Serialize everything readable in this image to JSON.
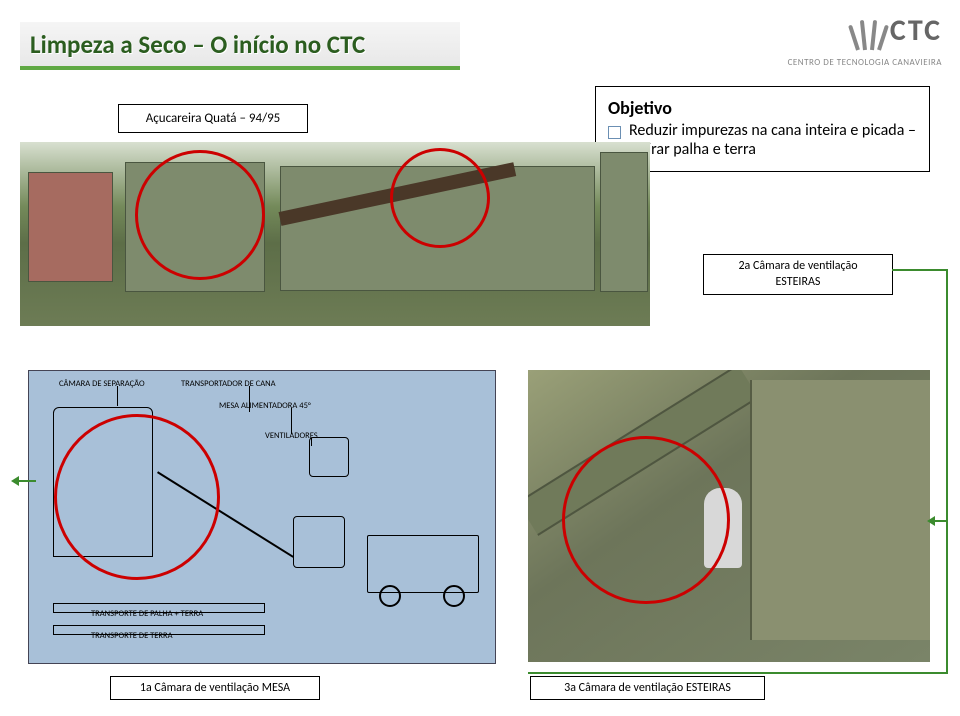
{
  "header": {
    "title": "Limpeza a Seco – O início no CTC",
    "logo_text": "CTC",
    "logo_subtitle": "CENTRO DE TECNOLOGIA CANAVIEIRA"
  },
  "labels": {
    "quata": "Açucareira Quatá – 94/95",
    "objetivo_title": "Objetivo",
    "objetivo_item": "Reduzir impurezas na cana inteira e picada – retirar palha e terra",
    "vent2_line1": "2a Câmara de ventilação",
    "vent2_line2": "ESTEIRAS",
    "vent1": "1a Câmara de ventilação MESA",
    "vent3_a": "3a Câmara de ventilação",
    "vent3_b": "ESTEIRAS"
  },
  "diagram": {
    "camara": "CÂMARA DE SEPARAÇÃO",
    "transportador": "TRANSPORTADOR DE CANA",
    "mesa": "MESA ALIMENTADORA 45°",
    "ventiladores": "VENTILADORES",
    "palha": "TRANSPORTE DE PALHA + TERRA",
    "terra": "TRANSPORTE DE TERRA"
  },
  "colors": {
    "title_green": "#2b5d1f",
    "underline_green": "#5fa843",
    "connector_green": "#3b8b2e",
    "circle_red": "#c00",
    "diagram_bg": "#a8c0d8",
    "logo_gray": "#666"
  }
}
